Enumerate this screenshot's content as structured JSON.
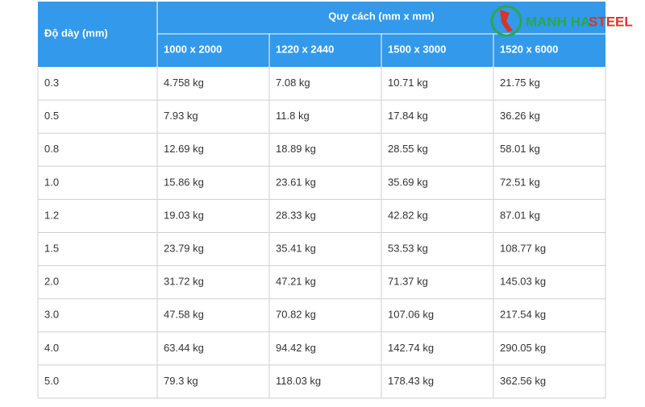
{
  "header": {
    "corner": "Độ dày (mm)",
    "group": "Quy cách (mm x mm)",
    "columns": [
      "1000 x 2000",
      "1220 x 2440",
      "1500 x 3000",
      "1520 x 6000"
    ]
  },
  "logo": {
    "parts": [
      "MANH HA",
      "STEEL"
    ]
  },
  "table": {
    "rows": [
      [
        "0.3",
        "4.758 kg",
        "7.08 kg",
        "10.71 kg",
        "21.75 kg"
      ],
      [
        "0.5",
        "7.93 kg",
        "11.8 kg",
        "17.84 kg",
        "36.26 kg"
      ],
      [
        "0.8",
        "12.69 kg",
        "18.89 kg",
        "28.55 kg",
        "58.01 kg"
      ],
      [
        "1.0",
        "15.86 kg",
        "23.61 kg",
        "35.69 kg",
        "72.51 kg"
      ],
      [
        "1.2",
        "19.03 kg",
        "28.33 kg",
        "42.82 kg",
        "87.01 kg"
      ],
      [
        "1.5",
        "23.79 kg",
        "35.41 kg",
        "53.53 kg",
        "108.77 kg"
      ],
      [
        "2.0",
        "31.72 kg",
        "47.21 kg",
        "71.37 kg",
        "145.03 kg"
      ],
      [
        "3.0",
        "47.58 kg",
        "70.82 kg",
        "107.06 kg",
        "217.54 kg"
      ],
      [
        "4.0",
        "63.44 kg",
        "94.42 kg",
        "142.74 kg",
        "290.05 kg"
      ],
      [
        "5.0",
        "79.3 kg",
        "118.03 kg",
        "178.43 kg",
        "362.56 kg"
      ]
    ]
  }
}
